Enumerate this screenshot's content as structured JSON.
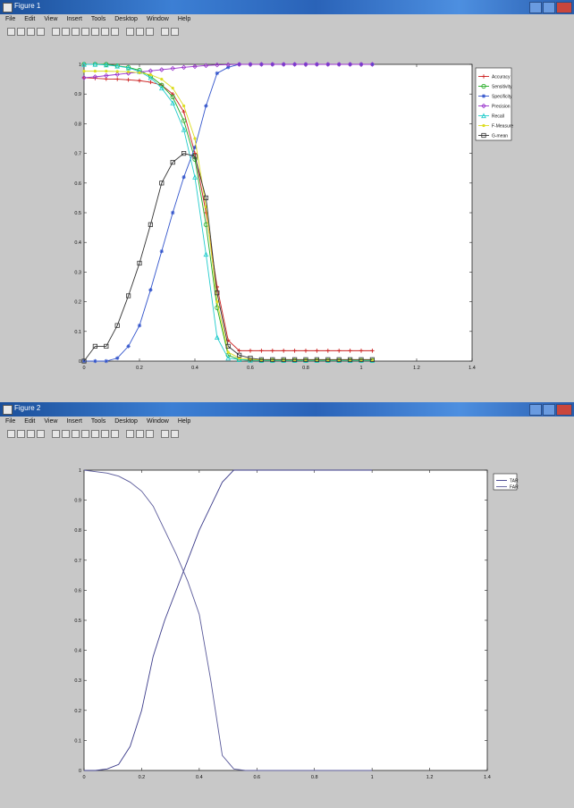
{
  "windows": [
    {
      "title": "Figure 1",
      "menu": [
        "File",
        "Edit",
        "View",
        "Insert",
        "Tools",
        "Desktop",
        "Window",
        "Help"
      ],
      "toolbar_icons": [
        "new-file-icon",
        "open-file-icon",
        "save-icon",
        "print-icon",
        "pointer-icon",
        "zoom-in-icon",
        "zoom-out-icon",
        "pan-icon",
        "rotate-icon",
        "data-cursor-icon",
        "brush-icon",
        "link-icon",
        "colorbar-icon",
        "legend-icon",
        "hide-plot-icon",
        "show-plot-icon"
      ]
    },
    {
      "title": "Figure 2",
      "menu": [
        "File",
        "Edit",
        "View",
        "Insert",
        "Tools",
        "Desktop",
        "Window",
        "Help"
      ],
      "toolbar_icons": [
        "new-file-icon",
        "open-file-icon",
        "save-icon",
        "print-icon",
        "pointer-icon",
        "zoom-in-icon",
        "zoom-out-icon",
        "pan-icon",
        "rotate-icon",
        "data-cursor-icon",
        "brush-icon",
        "link-icon",
        "colorbar-icon",
        "legend-icon",
        "hide-plot-icon",
        "show-plot-icon"
      ]
    }
  ],
  "chart_data": [
    {
      "type": "line",
      "title": "",
      "xlabel": "",
      "ylabel": "",
      "xlim": [
        0,
        1.4
      ],
      "ylim": [
        0,
        1
      ],
      "xticks": [
        "0",
        "0.2",
        "0.4",
        "0.6",
        "0.8",
        "1",
        "1.2",
        "1.4"
      ],
      "yticks": [
        "0",
        "0.1",
        "0.2",
        "0.3",
        "0.4",
        "0.5",
        "0.6",
        "0.7",
        "0.8",
        "0.9",
        "1"
      ],
      "grid": false,
      "legend": "top-right",
      "x": [
        0,
        0.04,
        0.08,
        0.12,
        0.16,
        0.2,
        0.24,
        0.28,
        0.32,
        0.36,
        0.4,
        0.44,
        0.48,
        0.52,
        0.56,
        0.6,
        0.64,
        0.68,
        0.72,
        0.76,
        0.8,
        0.84,
        0.88,
        0.92,
        0.96,
        1.0,
        1.04
      ],
      "series": [
        {
          "name": "Accuracy",
          "color": "#cc2222",
          "marker": "plus",
          "values": [
            0.955,
            0.953,
            0.951,
            0.95,
            0.948,
            0.945,
            0.94,
            0.93,
            0.9,
            0.84,
            0.7,
            0.5,
            0.25,
            0.07,
            0.035,
            0.035,
            0.035,
            0.035,
            0.035,
            0.035,
            0.035,
            0.035,
            0.035,
            0.035,
            0.035,
            0.035,
            0.035
          ]
        },
        {
          "name": "Sensitivity",
          "color": "#22aa22",
          "marker": "circle",
          "values": [
            1,
            1,
            1,
            0.995,
            0.99,
            0.98,
            0.96,
            0.93,
            0.89,
            0.81,
            0.68,
            0.46,
            0.18,
            0.02,
            0.005,
            0.003,
            0.002,
            0.002,
            0.002,
            0.002,
            0.002,
            0.002,
            0.002,
            0.002,
            0.002,
            0.002,
            0.002
          ]
        },
        {
          "name": "Specificity",
          "color": "#3355cc",
          "marker": "star",
          "values": [
            0,
            0,
            0,
            0.01,
            0.05,
            0.12,
            0.24,
            0.37,
            0.5,
            0.62,
            0.72,
            0.86,
            0.97,
            0.99,
            1,
            1,
            1,
            1,
            1,
            1,
            1,
            1,
            1,
            1,
            1,
            1,
            1
          ]
        },
        {
          "name": "Precision",
          "color": "#9933cc",
          "marker": "diamond",
          "values": [
            0.955,
            0.958,
            0.962,
            0.966,
            0.97,
            0.974,
            0.978,
            0.982,
            0.986,
            0.99,
            0.993,
            0.996,
            0.998,
            0.999,
            1,
            1,
            1,
            1,
            1,
            1,
            1,
            1,
            1,
            1,
            1,
            1,
            1
          ]
        },
        {
          "name": "Recall",
          "color": "#22cccc",
          "marker": "triangle",
          "values": [
            1,
            1,
            0.998,
            0.994,
            0.988,
            0.976,
            0.955,
            0.92,
            0.87,
            0.78,
            0.62,
            0.36,
            0.08,
            0.01,
            0.005,
            0.003,
            0.002,
            0.002,
            0.002,
            0.002,
            0.002,
            0.002,
            0.002,
            0.002,
            0.002,
            0.002,
            0.002
          ]
        },
        {
          "name": "F-Measure",
          "color": "#dddd22",
          "marker": "dot",
          "values": [
            0.977,
            0.977,
            0.977,
            0.976,
            0.975,
            0.972,
            0.965,
            0.95,
            0.92,
            0.86,
            0.75,
            0.52,
            0.2,
            0.03,
            0.01,
            0.006,
            0.004,
            0.004,
            0.004,
            0.004,
            0.004,
            0.004,
            0.004,
            0.004,
            0.004,
            0.004,
            0.004
          ]
        },
        {
          "name": "G-mean",
          "color": "#333333",
          "marker": "square",
          "values": [
            0,
            0.05,
            0.05,
            0.12,
            0.22,
            0.33,
            0.46,
            0.6,
            0.67,
            0.7,
            0.69,
            0.55,
            0.23,
            0.05,
            0.02,
            0.01,
            0.005,
            0.005,
            0.005,
            0.005,
            0.005,
            0.005,
            0.005,
            0.005,
            0.005,
            0.005,
            0.005
          ]
        }
      ]
    },
    {
      "type": "line",
      "title": "",
      "xlabel": "",
      "ylabel": "",
      "xlim": [
        0,
        1.4
      ],
      "ylim": [
        0,
        1
      ],
      "xticks": [
        "0",
        "0.2",
        "0.4",
        "0.6",
        "0.8",
        "1",
        "1.2",
        "1.4"
      ],
      "yticks": [
        "0",
        "0.1",
        "0.2",
        "0.3",
        "0.4",
        "0.5",
        "0.6",
        "0.7",
        "0.8",
        "0.9",
        "1"
      ],
      "grid": false,
      "legend": "top-right",
      "x": [
        0,
        0.04,
        0.08,
        0.12,
        0.16,
        0.2,
        0.24,
        0.28,
        0.32,
        0.36,
        0.4,
        0.44,
        0.48,
        0.52,
        0.56,
        0.6,
        0.7,
        0.8,
        0.9,
        1.0
      ],
      "series": [
        {
          "name": "TAR",
          "color": "#3b3b8a",
          "values": [
            0,
            0,
            0.005,
            0.02,
            0.08,
            0.2,
            0.38,
            0.5,
            0.6,
            0.7,
            0.8,
            0.88,
            0.96,
            1,
            1,
            1,
            1,
            1,
            1,
            1
          ]
        },
        {
          "name": "FAR",
          "color": "#5a5a9a",
          "values": [
            1,
            0.995,
            0.99,
            0.98,
            0.96,
            0.93,
            0.88,
            0.8,
            0.72,
            0.63,
            0.52,
            0.3,
            0.05,
            0.005,
            0,
            0,
            0,
            0,
            0,
            0
          ]
        }
      ]
    }
  ]
}
